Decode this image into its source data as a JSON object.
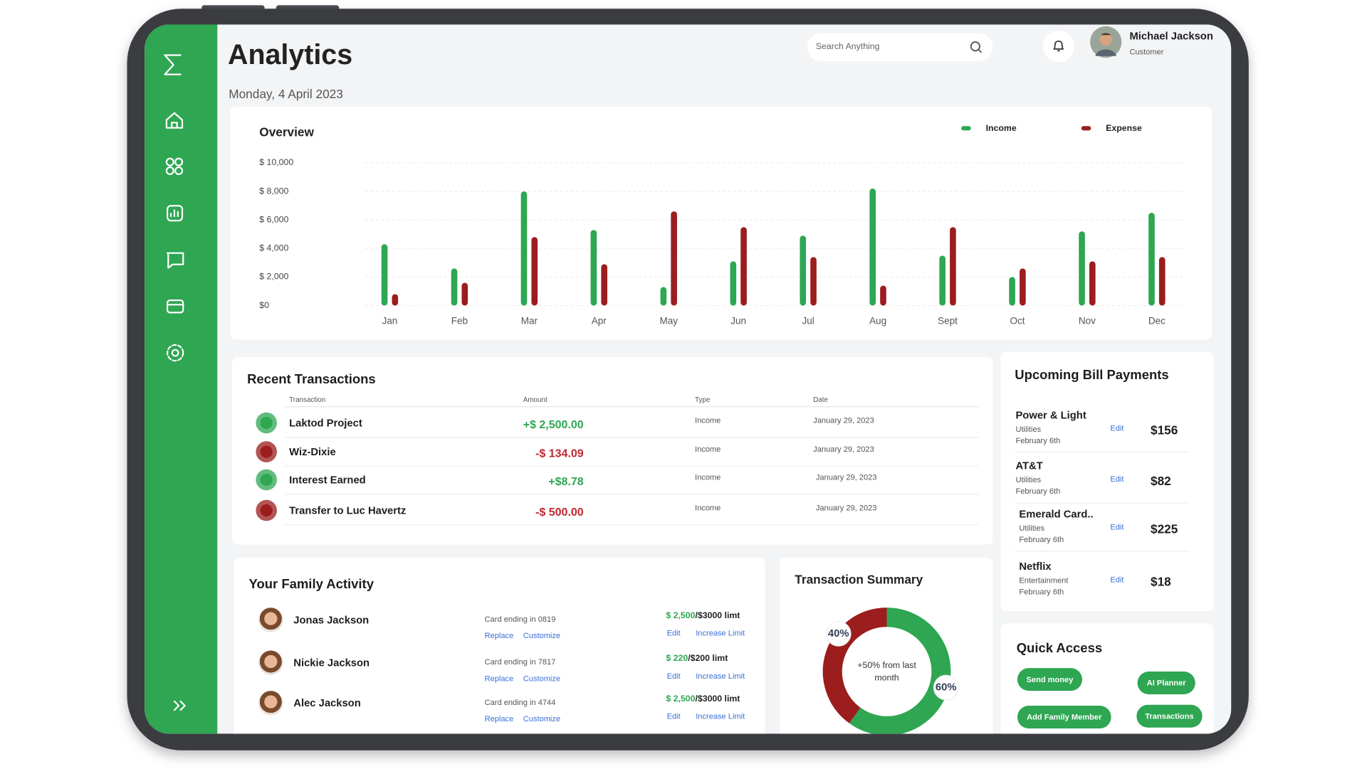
{
  "header": {
    "title": "Analytics",
    "date": "Monday, 4 April 2023",
    "search_placeholder": "Search Anything",
    "user_name": "Michael Jackson",
    "user_role": "Customer"
  },
  "chart_data": [
    {
      "type": "bar",
      "title": "Overview",
      "categories": [
        "Jan",
        "Feb",
        "Mar",
        "Apr",
        "May",
        "Jun",
        "Jul",
        "Aug",
        "Sept",
        "Oct",
        "Nov",
        "Dec"
      ],
      "series": [
        {
          "name": "Income",
          "color": "#2ea652",
          "values": [
            4300,
            2600,
            8000,
            5300,
            1300,
            3100,
            4900,
            8200,
            3500,
            2000,
            5200,
            6500
          ]
        },
        {
          "name": "Expense",
          "color": "#9b1d1d",
          "values": [
            800,
            1600,
            4800,
            2900,
            6600,
            5500,
            3400,
            1400,
            5500,
            2600,
            3100,
            3400
          ]
        }
      ],
      "ylim": [
        0,
        10000
      ],
      "yticks": [
        {
          "value": 0,
          "label": "$0"
        },
        {
          "value": 2000,
          "label": "$ 2,000"
        },
        {
          "value": 4000,
          "label": "$ 4,000"
        },
        {
          "value": 6000,
          "label": "$ 6,000"
        },
        {
          "value": 8000,
          "label": "$ 8,000"
        },
        {
          "value": 10000,
          "label": "$ 10,000"
        }
      ],
      "grid": true,
      "legend": "top-right"
    },
    {
      "type": "donut",
      "title": "Transaction Summary",
      "center_text": "+50% from last month",
      "values": [
        60,
        40
      ],
      "value_labels": [
        "60%",
        "40%"
      ],
      "colors": [
        "#2ea652",
        "#9b1d1d"
      ]
    }
  ],
  "transactions": {
    "title": "Recent Transactions",
    "columns": [
      "Transaction",
      "Amount",
      "Type",
      "Date"
    ],
    "rows": [
      {
        "name": "Laktod Project",
        "amount": "+$ 2,500.00",
        "type": "Income",
        "date": "January 29, 2023"
      },
      {
        "name": "Wiz-Dixie",
        "amount": "-$ 134.09",
        "type": "Income",
        "date": "January 29, 2023"
      },
      {
        "name": "Interest Earned",
        "amount": "+$8.78",
        "type": "Income",
        "date": "January 29, 2023"
      },
      {
        "name": "Transfer to Luc Havertz",
        "amount": "-$ 500.00",
        "type": "Income",
        "date": "January 29, 2023"
      }
    ]
  },
  "family": {
    "title": "Your Family Activity",
    "members": [
      {
        "name": "Jonas Jackson",
        "card": "Card ending in 0819",
        "actions": [
          "Replace",
          "Customize"
        ],
        "spent": "$ 2,500",
        "limit": "/$3000 limt",
        "limit_actions": [
          "Edit",
          "Increase Limit"
        ]
      },
      {
        "name": "Nickie Jackson",
        "card": "Card ending in 7817",
        "actions": [
          "Replace",
          "Customize"
        ],
        "spent": "$ 220",
        "limit": "/$200 limt",
        "limit_actions": [
          "Edit",
          "Increase Limit"
        ]
      },
      {
        "name": "Alec Jackson",
        "card": "Card ending in 4744",
        "actions": [
          "Replace",
          "Customize"
        ],
        "spent": "$ 2,500",
        "limit": "/$3000 limt",
        "limit_actions": [
          "Edit",
          "Increase Limit"
        ]
      }
    ]
  },
  "bills": {
    "title": "Upcoming Bill Payments",
    "items": [
      {
        "name": "Power & Light",
        "category": "Utilities",
        "due": "February 6th",
        "action": "Edit",
        "amount": "$156"
      },
      {
        "name": "AT&T",
        "category": "Utilities",
        "due": "February 6th",
        "action": "Edit",
        "amount": "$82"
      },
      {
        "name": "Emerald Card..",
        "category": "Utilities",
        "due": "February 6th",
        "action": "Edit",
        "amount": "$225"
      },
      {
        "name": "Netflix",
        "category": "Entertainment",
        "due": "February 6th",
        "action": "Edit",
        "amount": "$18"
      }
    ]
  },
  "quick_access": {
    "title": "Quick Access",
    "buttons": [
      "Send money",
      "AI Planner",
      "Add Family Member",
      "Transactions"
    ]
  }
}
